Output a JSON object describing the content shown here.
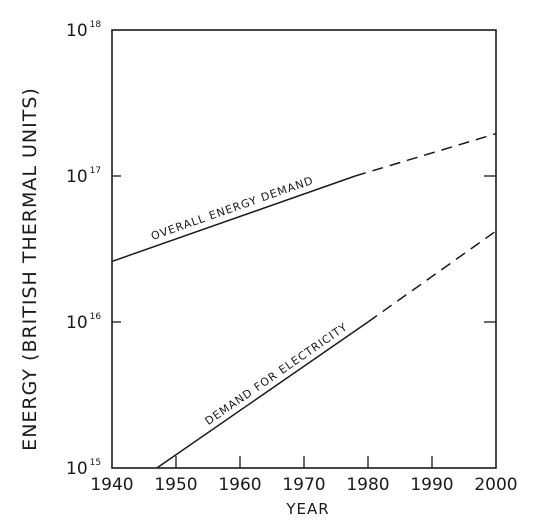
{
  "chart_data": {
    "type": "line",
    "title": "",
    "xlabel": "YEAR",
    "ylabel": "ENERGY (BRITISH THERMAL UNITS)",
    "xlim": [
      1940,
      2000
    ],
    "ylim": [
      1000000000000000.0,
      1e+18
    ],
    "yscale": "log",
    "grid": false,
    "x_ticks": [
      1940,
      1950,
      1960,
      1970,
      1980,
      1990,
      2000
    ],
    "y_ticks": [
      {
        "value": 1000000000000000.0,
        "base": "10",
        "exp": "15"
      },
      {
        "value": 1e+16,
        "base": "10",
        "exp": "16"
      },
      {
        "value": 1e+17,
        "base": "10",
        "exp": "17"
      },
      {
        "value": 1e+18,
        "base": "10",
        "exp": "18"
      }
    ],
    "series": [
      {
        "name": "OVERALL ENERGY DEMAND",
        "color": "#1a1a1a",
        "actual": [
          [
            1940,
            2.6e+16
          ],
          [
            1978,
            1e+17
          ]
        ],
        "projected": [
          [
            1978,
            1e+17
          ],
          [
            2000,
            1.95e+17
          ]
        ]
      },
      {
        "name": "DEMAND FOR ELECTRICITY",
        "color": "#1a1a1a",
        "actual": [
          [
            1947,
            1000000000000000.0
          ],
          [
            1980,
            1e+16
          ]
        ],
        "projected": [
          [
            1980,
            1e+16
          ],
          [
            2000,
            4.2e+16
          ]
        ]
      }
    ]
  }
}
